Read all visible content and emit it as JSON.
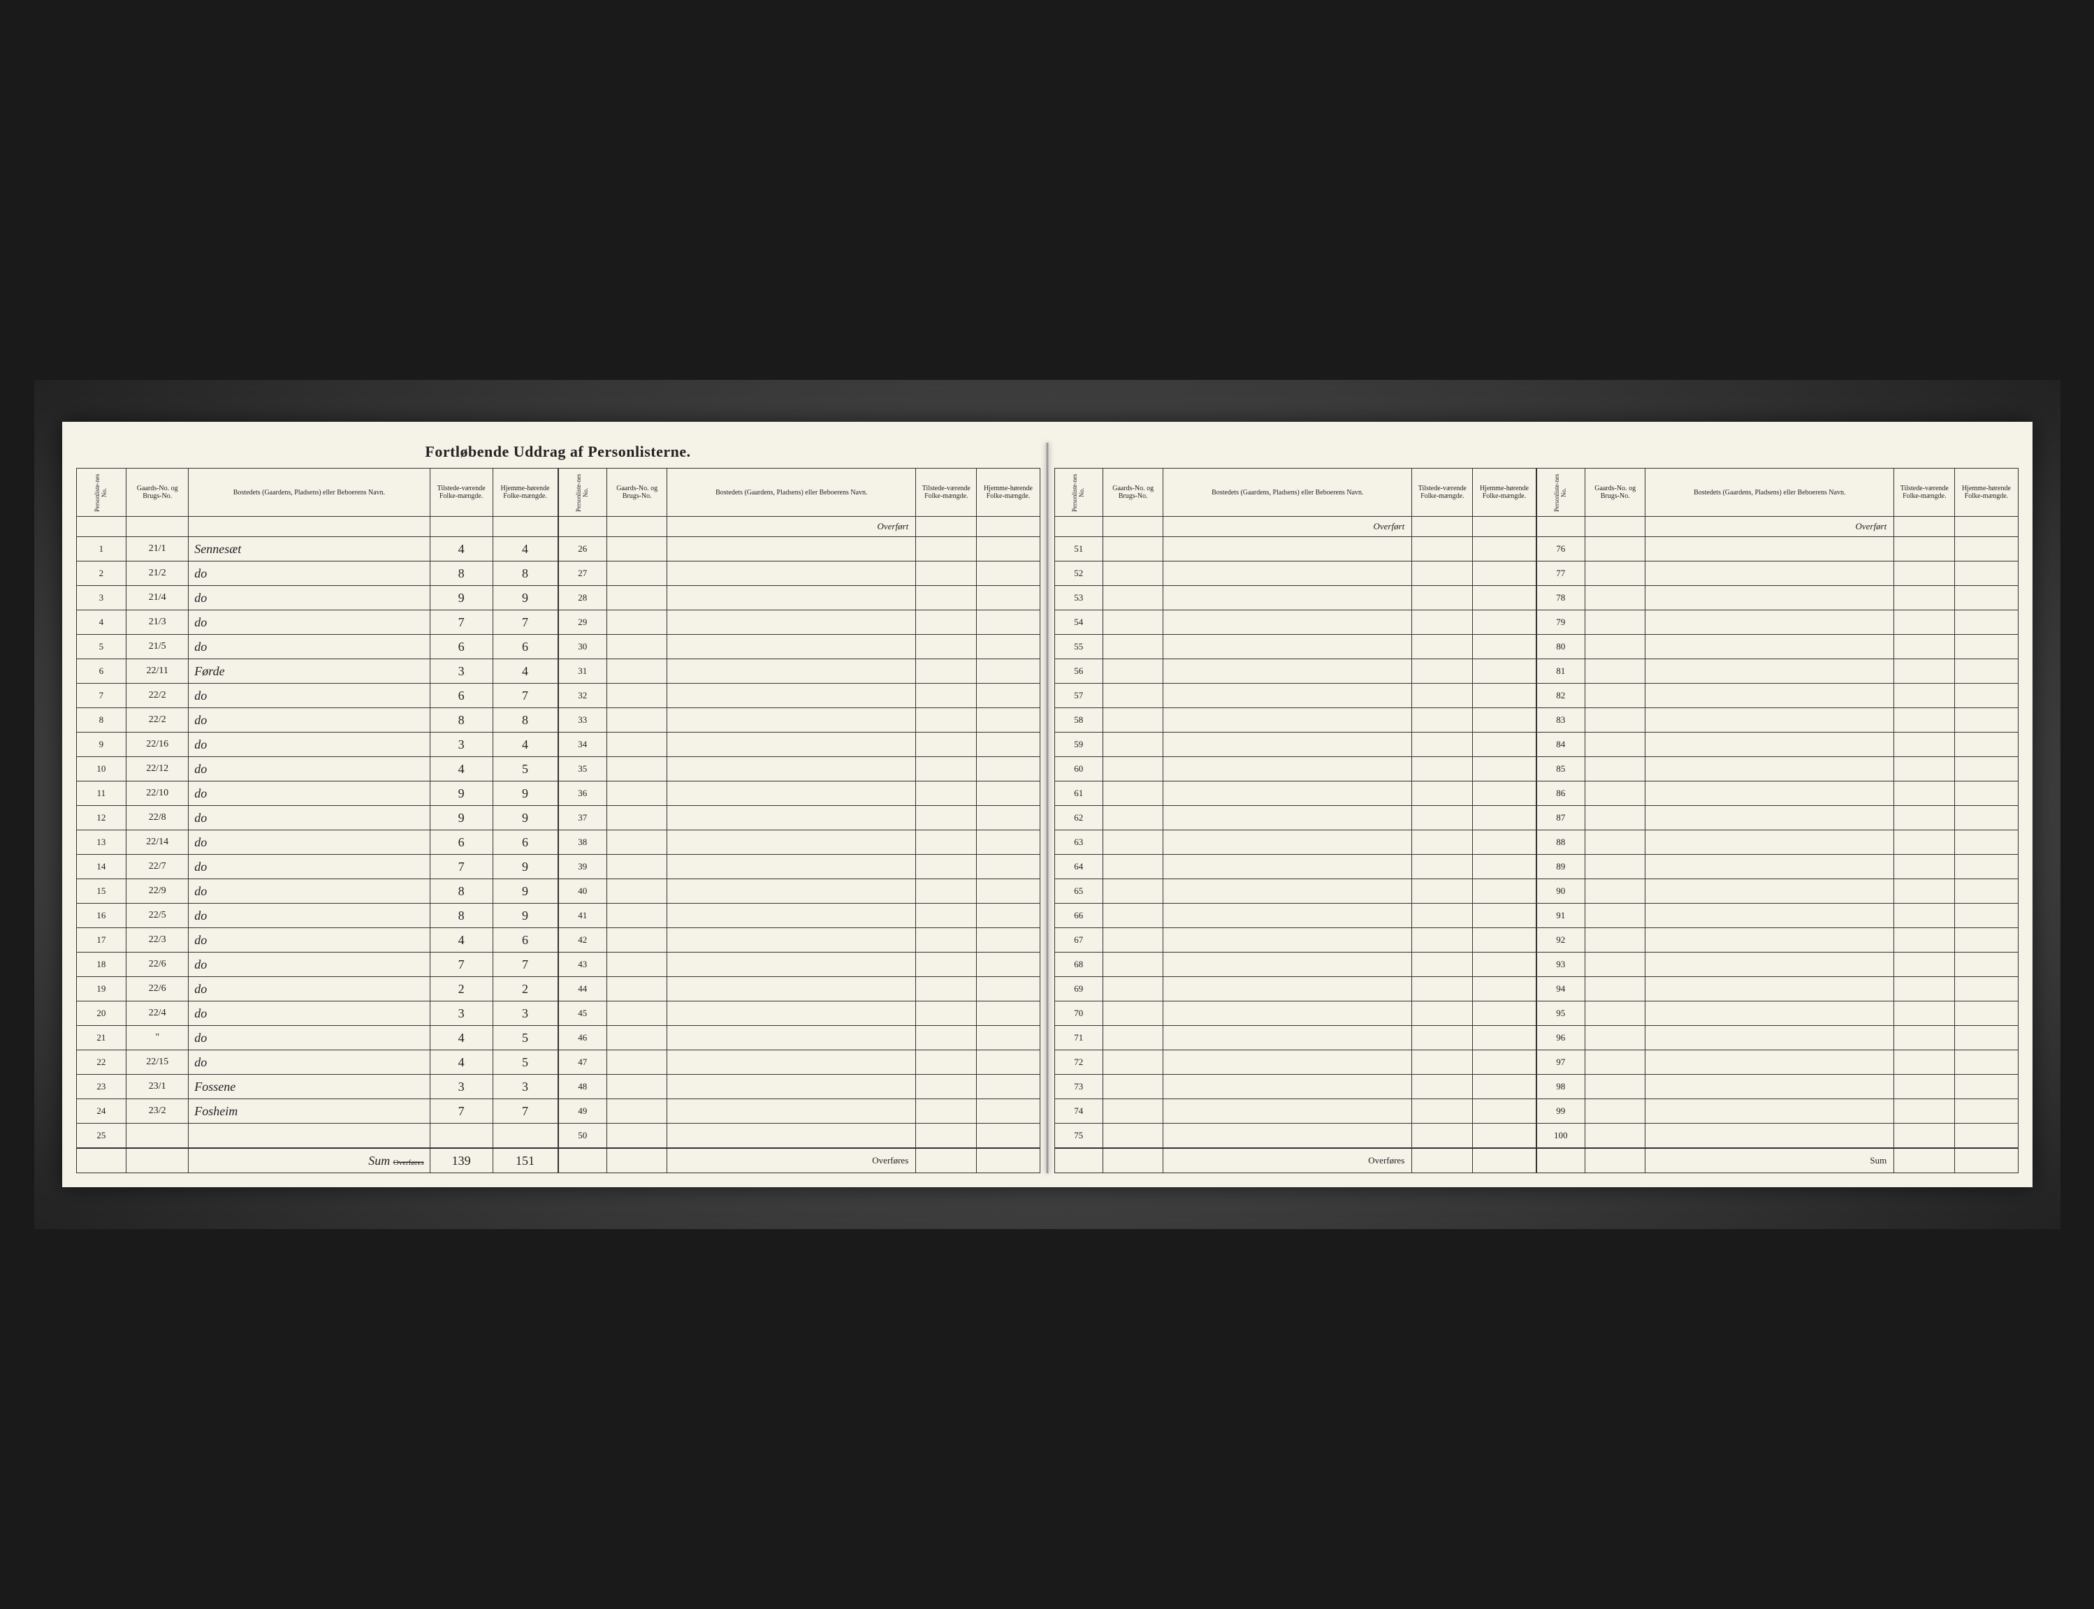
{
  "title": "Fortløbende Uddrag af Personlisterne.",
  "headers": {
    "personliste": "Personliste-nes No.",
    "gaards": "Gaards-No. og Brugs-No.",
    "bosted": "Bostedets (Gaardens, Pladsens) eller Beboerens Navn.",
    "tilstede": "Tilstede-værende Folke-mængde.",
    "hjemme": "Hjemme-hørende Folke-mængde."
  },
  "overfort": "Overført",
  "overfores": "Overføres",
  "sum_label": "Sum",
  "sum_strike": "Overføres",
  "rows": [
    {
      "no": "1",
      "gaard": "21/1",
      "name": "Sennesæt",
      "t": "4",
      "h": "4"
    },
    {
      "no": "2",
      "gaard": "21/2",
      "name": "do",
      "t": "8",
      "h": "8"
    },
    {
      "no": "3",
      "gaard": "21/4",
      "name": "do",
      "t": "9",
      "h": "9"
    },
    {
      "no": "4",
      "gaard": "21/3",
      "name": "do",
      "t": "7",
      "h": "7"
    },
    {
      "no": "5",
      "gaard": "21/5",
      "name": "do",
      "t": "6",
      "h": "6"
    },
    {
      "no": "6",
      "gaard": "22/11",
      "name": "Førde",
      "t": "3",
      "h": "4"
    },
    {
      "no": "7",
      "gaard": "22/2",
      "name": "do",
      "t": "6",
      "h": "7"
    },
    {
      "no": "8",
      "gaard": "22/2",
      "name": "do",
      "t": "8",
      "h": "8"
    },
    {
      "no": "9",
      "gaard": "22/16",
      "name": "do",
      "t": "3",
      "h": "4"
    },
    {
      "no": "10",
      "gaard": "22/12",
      "name": "do",
      "t": "4",
      "h": "5"
    },
    {
      "no": "11",
      "gaard": "22/10",
      "name": "do",
      "t": "9",
      "h": "9"
    },
    {
      "no": "12",
      "gaard": "22/8",
      "name": "do",
      "t": "9",
      "h": "9"
    },
    {
      "no": "13",
      "gaard": "22/14",
      "name": "do",
      "t": "6",
      "h": "6"
    },
    {
      "no": "14",
      "gaard": "22/7",
      "name": "do",
      "t": "7",
      "h": "9"
    },
    {
      "no": "15",
      "gaard": "22/9",
      "name": "do",
      "t": "8",
      "h": "9"
    },
    {
      "no": "16",
      "gaard": "22/5",
      "name": "do",
      "t": "8",
      "h": "9"
    },
    {
      "no": "17",
      "gaard": "22/3",
      "name": "do",
      "t": "4",
      "h": "6"
    },
    {
      "no": "18",
      "gaard": "22/6",
      "name": "do",
      "t": "7",
      "h": "7"
    },
    {
      "no": "19",
      "gaard": "22/6",
      "name": "do",
      "t": "2",
      "h": "2"
    },
    {
      "no": "20",
      "gaard": "22/4",
      "name": "do",
      "t": "3",
      "h": "3"
    },
    {
      "no": "21",
      "gaard": "\"",
      "name": "do",
      "t": "4",
      "h": "5"
    },
    {
      "no": "22",
      "gaard": "22/15",
      "name": "do",
      "t": "4",
      "h": "5"
    },
    {
      "no": "23",
      "gaard": "23/1",
      "name": "Fossene",
      "t": "3",
      "h": "3"
    },
    {
      "no": "24",
      "gaard": "23/2",
      "name": "Fosheim",
      "t": "7",
      "h": "7"
    },
    {
      "no": "25",
      "gaard": "",
      "name": "",
      "t": "",
      "h": ""
    }
  ],
  "sum_t": "139",
  "sum_h": "151",
  "empty_blocks": [
    {
      "start": 26,
      "end": 50,
      "footer": "Overføres"
    },
    {
      "start": 51,
      "end": 75,
      "footer": "Overføres"
    },
    {
      "start": 76,
      "end": 100,
      "footer": "Sum"
    }
  ]
}
